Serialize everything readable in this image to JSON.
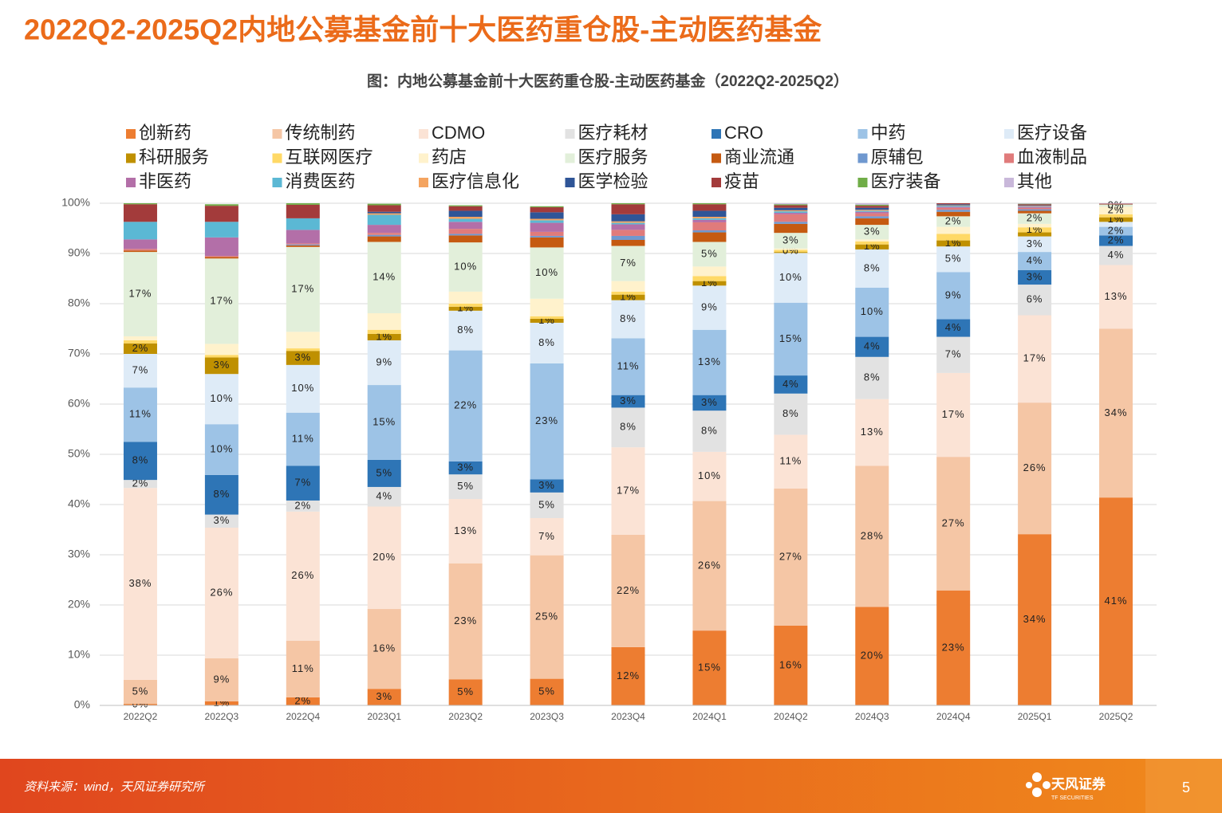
{
  "header": {
    "title": "2022Q2-2025Q2内地公募基金前十大医药重仓股-主动医药基金"
  },
  "chart_data": {
    "type": "stacked_bar",
    "title": "图：内地公募基金前十大医药重仓股-主动医药基金（2022Q2-2025Q2）",
    "categories": [
      "2022Q2",
      "2022Q3",
      "2022Q4",
      "2023Q1",
      "2023Q2",
      "2023Q3",
      "2023Q4",
      "2024Q1",
      "2024Q2",
      "2024Q3",
      "2024Q4",
      "2025Q1",
      "2025Q2"
    ],
    "ylim": [
      0,
      100
    ],
    "yticks": [
      {
        "value": 0,
        "label": "0%"
      },
      {
        "value": 10,
        "label": "10%"
      },
      {
        "value": 20,
        "label": "20%"
      },
      {
        "value": 30,
        "label": "30%"
      },
      {
        "value": 40,
        "label": "40%"
      },
      {
        "value": 50,
        "label": "50%"
      },
      {
        "value": 60,
        "label": "60%"
      },
      {
        "value": 70,
        "label": "70%"
      },
      {
        "value": 80,
        "label": "80%"
      },
      {
        "value": 90,
        "label": "90%"
      },
      {
        "value": 100,
        "label": "100%"
      }
    ],
    "grid": true,
    "series": [
      {
        "name": "创新药",
        "color": "#ED7D31",
        "values": [
          0.3,
          0.8,
          1.6,
          3.3,
          5.2,
          5.3,
          11.6,
          14.9,
          15.9,
          19.6,
          22.9,
          34.1,
          41.4
        ],
        "value_labels": [
          "0%",
          "1%",
          "2%",
          "3%",
          "5%",
          "5%",
          "12%",
          "15%",
          "16%",
          "20%",
          "23%",
          "34%",
          "41%"
        ]
      },
      {
        "name": "传统制药",
        "color": "#F5C6A5",
        "values": [
          4.8,
          8.6,
          11.3,
          15.9,
          23.1,
          24.6,
          22.4,
          25.8,
          27.3,
          28.1,
          26.6,
          26.2,
          33.6
        ],
        "value_labels": [
          "5%",
          "9%",
          "11%",
          "16%",
          "23%",
          "25%",
          "22%",
          "26%",
          "27%",
          "28%",
          "27%",
          "26%",
          "34%"
        ]
      },
      {
        "name": "CDMO",
        "color": "#FBE3D5",
        "values": [
          38.2,
          26.0,
          25.7,
          20.4,
          12.8,
          7.4,
          17.4,
          9.8,
          10.7,
          13.3,
          16.7,
          17.4,
          12.7
        ],
        "value_labels": [
          "38%",
          "26%",
          "26%",
          "20%",
          "13%",
          "7%",
          "17%",
          "10%",
          "11%",
          "13%",
          "17%",
          "17%",
          "13%"
        ]
      },
      {
        "name": "医疗耗材",
        "color": "#E2E2E2",
        "values": [
          1.6,
          2.6,
          2.2,
          3.9,
          4.9,
          5.1,
          7.9,
          8.2,
          8.2,
          8.4,
          7.2,
          6.1,
          3.8
        ],
        "value_labels": [
          "2%",
          "3%",
          "2%",
          "4%",
          "5%",
          "5%",
          "8%",
          "8%",
          "8%",
          "8%",
          "7%",
          "6%",
          "4%"
        ]
      },
      {
        "name": "CRO",
        "color": "#2E75B6",
        "values": [
          7.6,
          7.9,
          6.9,
          5.4,
          2.6,
          2.6,
          2.5,
          3.1,
          3.6,
          4.0,
          3.5,
          2.9,
          2.1
        ],
        "value_labels": [
          "8%",
          "8%",
          "7%",
          "5%",
          "3%",
          "3%",
          "3%",
          "3%",
          "4%",
          "4%",
          "4%",
          "3%",
          "2%"
        ]
      },
      {
        "name": "中药",
        "color": "#9DC3E6",
        "values": [
          10.8,
          10.1,
          10.6,
          14.9,
          22.1,
          23.1,
          11.3,
          13.0,
          14.5,
          9.8,
          9.4,
          3.6,
          1.7
        ],
        "value_labels": [
          "11%",
          "10%",
          "11%",
          "15%",
          "22%",
          "23%",
          "11%",
          "13%",
          "15%",
          "10%",
          "9%",
          "4%",
          "2%"
        ]
      },
      {
        "name": "医疗设备",
        "color": "#DEEBF7",
        "values": [
          6.7,
          10.0,
          9.5,
          8.9,
          7.9,
          8.1,
          7.6,
          8.8,
          9.9,
          7.6,
          5.1,
          3.1,
          1.0
        ],
        "value_labels": [
          "7%",
          "10%",
          "10%",
          "9%",
          "8%",
          "8%",
          "8%",
          "9%",
          "10%",
          "8%",
          "5%",
          "3%",
          null
        ]
      },
      {
        "name": "科研服务",
        "color": "#BF9000",
        "values": [
          2.1,
          3.3,
          2.8,
          1.3,
          0.8,
          0.8,
          1.1,
          0.9,
          0.2,
          1.0,
          1.2,
          0.8,
          0.9
        ],
        "value_labels": [
          "2%",
          "3%",
          "3%",
          "1%",
          "1%",
          "1%",
          "1%",
          "1%",
          null,
          "1%",
          "1%",
          null,
          "1%"
        ]
      },
      {
        "name": "互联网医疗",
        "color": "#FFD966",
        "values": [
          0.6,
          0.5,
          0.5,
          0.8,
          0.6,
          0.5,
          0.6,
          1.0,
          0.4,
          0.6,
          1.3,
          1.0,
          0.6
        ],
        "value_labels": [
          null,
          null,
          null,
          null,
          null,
          null,
          null,
          null,
          "0%",
          null,
          null,
          "1%",
          null
        ]
      },
      {
        "name": "药店",
        "color": "#FFF2CC",
        "values": [
          0.8,
          2.2,
          3.3,
          3.3,
          2.4,
          3.5,
          2.1,
          1.9,
          0.3,
          0.4,
          1.4,
          0.7,
          1.5
        ],
        "value_labels": [
          null,
          null,
          null,
          null,
          null,
          null,
          null,
          null,
          null,
          null,
          null,
          null,
          "2%"
        ]
      },
      {
        "name": "医疗服务",
        "color": "#E2EFDA",
        "values": [
          16.8,
          17.0,
          16.9,
          14.2,
          9.8,
          10.2,
          7.0,
          4.9,
          3.1,
          2.9,
          2.1,
          2.1,
          0.4
        ],
        "value_labels": [
          "17%",
          "17%",
          "17%",
          "14%",
          "10%",
          "10%",
          "7%",
          "5%",
          "3%",
          "3%",
          "2%",
          "2%",
          "0%"
        ]
      },
      {
        "name": "商业流通",
        "color": "#C55A11",
        "values": [
          0.3,
          0.3,
          0.3,
          1.1,
          1.4,
          2.0,
          1.2,
          1.9,
          1.8,
          1.3,
          0.9,
          0.5,
          0.1
        ]
      },
      {
        "name": "原辅包",
        "color": "#6F98CF",
        "values": [
          0,
          0,
          0.2,
          0.3,
          0.3,
          0.3,
          0.8,
          0.4,
          0.4,
          0.4,
          0.4,
          0.3,
          0.1
        ]
      },
      {
        "name": "血液制品",
        "color": "#E07B7B",
        "values": [
          0.3,
          0.2,
          0.2,
          0.4,
          1.0,
          0.8,
          1.2,
          1.6,
          1.5,
          0.6,
          0.4,
          0.3,
          0.1
        ]
      },
      {
        "name": "非医药",
        "color": "#B36FA8",
        "values": [
          1.9,
          3.7,
          2.7,
          1.6,
          1.4,
          1.8,
          1.1,
          0.5,
          0.3,
          0.3,
          0.2,
          0.2,
          0
        ]
      },
      {
        "name": "消费医药",
        "color": "#5BB8D4",
        "values": [
          3.5,
          3.1,
          2.3,
          2.0,
          0.6,
          0.5,
          0.3,
          0.3,
          0.3,
          0.2,
          0.2,
          0.1,
          0
        ]
      },
      {
        "name": "医疗信息化",
        "color": "#F4A460",
        "values": [
          0,
          0,
          0,
          0.3,
          0.4,
          0.3,
          0.3,
          0.3,
          0.2,
          0.2,
          0.1,
          0.1,
          0
        ]
      },
      {
        "name": "医学检验",
        "color": "#2F5597",
        "values": [
          0,
          0,
          0,
          0.3,
          1.2,
          1.3,
          1.4,
          1.2,
          0.5,
          0.4,
          0.2,
          0.1,
          0
        ]
      },
      {
        "name": "疫苗",
        "color": "#A33B3B",
        "values": [
          3.5,
          3.2,
          2.7,
          1.3,
          0.9,
          1.0,
          2.0,
          1.3,
          0.5,
          0.4,
          0.2,
          0.2,
          0
        ]
      },
      {
        "name": "医疗装备",
        "color": "#70AD47",
        "values": [
          0.2,
          0.3,
          0.3,
          0.3,
          0.2,
          0.2,
          0.2,
          0.2,
          0.2,
          0.2,
          0,
          0.1,
          0
        ]
      },
      {
        "name": "其他",
        "color": "#C9B8DA",
        "values": [
          0,
          0,
          0,
          0,
          0,
          0,
          0,
          0,
          0.2,
          0.3,
          0,
          0.1,
          0
        ]
      }
    ]
  },
  "footer": {
    "source": "资料来源：wind，天风证券研究所",
    "logo": "天风证券",
    "logo_en": "TF SECURITIES",
    "page": "5"
  }
}
